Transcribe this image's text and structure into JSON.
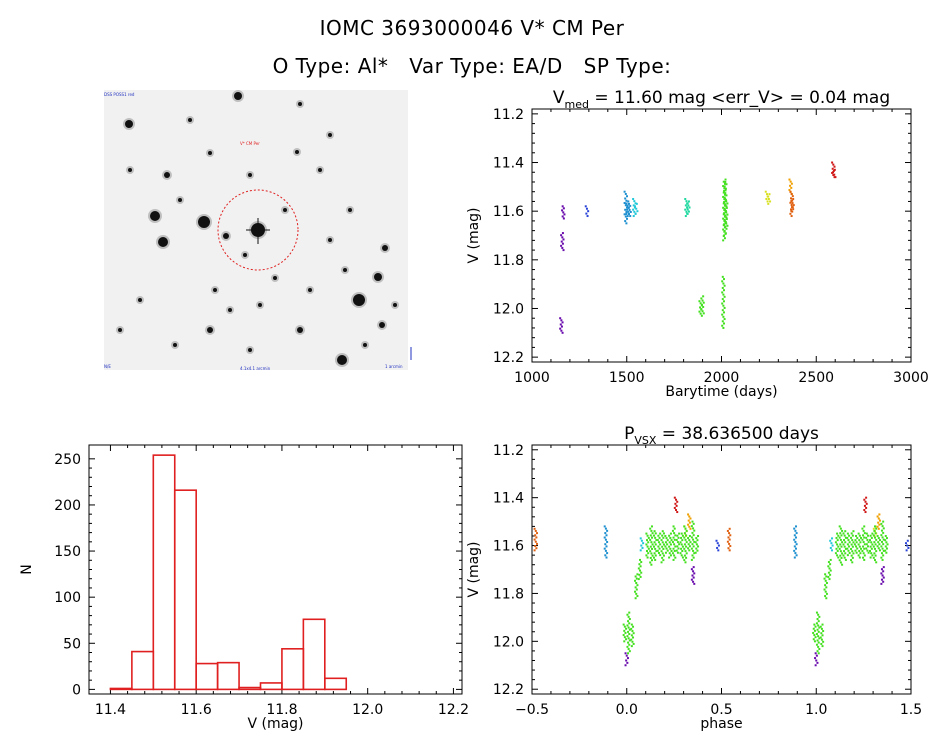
{
  "header": {
    "title": "IOMC 3693000046    V* CM Per",
    "otype": "O Type: Al*",
    "vartype": "Var Type: EA/D",
    "sptype": "SP Type:"
  },
  "finder": {
    "corner_tl": "DSS POSS1 red",
    "label_target": "V* CM Per",
    "corner_bl": "N/E",
    "corner_bc": "4.1x4.1 arcmin",
    "corner_br": "1 arcmin",
    "colors": {
      "ring": "#e02020",
      "scale": "#2030c0"
    }
  },
  "chart_data": [
    {
      "id": "lightcurve",
      "type": "scatter",
      "title_main": "V",
      "title_sub": "med",
      "title_rest": " = 11.60 mag <err_V> = 0.04 mag",
      "xlabel": "Barytime (days)",
      "ylabel": "V (mag)",
      "xlim": [
        1000,
        3000
      ],
      "ylim": [
        12.22,
        11.18
      ],
      "x_ticks": [
        1000,
        1500,
        2000,
        2500,
        3000
      ],
      "x_tick_labels": [
        "1000",
        "1500",
        "2000",
        "2500",
        "3000"
      ],
      "y_ticks": [
        11.2,
        11.4,
        11.6,
        11.8,
        12.0,
        12.2
      ],
      "y_tick_labels": [
        "11.2",
        "11.4",
        "11.6",
        "11.8",
        "12.0",
        "12.2"
      ],
      "groups": [
        {
          "color": "#6a0dad",
          "x": [
            1155,
            1160,
            1165
          ],
          "y": [
            [
              12.04,
              12.1
            ],
            [
              11.69,
              11.76
            ],
            [
              11.58,
              11.63
            ]
          ]
        },
        {
          "color": "#2a44d8",
          "x": [
            1290
          ],
          "y": [
            [
              11.58,
              11.62
            ]
          ]
        },
        {
          "color": "#1e90d0",
          "x": [
            1495,
            1505,
            1515
          ],
          "y": [
            [
              11.52,
              11.65
            ],
            [
              11.56,
              11.62
            ],
            [
              11.57,
              11.62
            ]
          ]
        },
        {
          "color": "#20c8d8",
          "x": [
            1540,
            1550
          ],
          "y": [
            [
              11.55,
              11.62
            ],
            [
              11.57,
              11.61
            ]
          ]
        },
        {
          "color": "#20d8a0",
          "x": [
            1815,
            1825
          ],
          "y": [
            [
              11.55,
              11.62
            ],
            [
              11.56,
              11.61
            ]
          ]
        },
        {
          "color": "#44e020",
          "x": [
            1890,
            1900,
            2010,
            2015,
            2020,
            2025
          ],
          "y": [
            [
              11.97,
              12.03
            ],
            [
              11.95,
              12.02
            ],
            [
              11.87,
              12.08
            ],
            [
              11.47,
              11.72
            ],
            [
              11.48,
              11.7
            ],
            [
              11.55,
              11.66
            ]
          ]
        },
        {
          "color": "#d8e020",
          "x": [
            2240,
            2250
          ],
          "y": [
            [
              11.52,
              11.56
            ],
            [
              11.53,
              11.57
            ]
          ]
        },
        {
          "color": "#f0a000",
          "x": [
            2365
          ],
          "y": [
            [
              11.47,
              11.53
            ]
          ]
        },
        {
          "color": "#e06010",
          "x": [
            2370,
            2375
          ],
          "y": [
            [
              11.52,
              11.62
            ],
            [
              11.55,
              11.6
            ]
          ]
        },
        {
          "color": "#d01818",
          "x": [
            2590,
            2595
          ],
          "y": [
            [
              11.4,
              11.46
            ],
            [
              11.43,
              11.46
            ]
          ]
        }
      ]
    },
    {
      "id": "histogram",
      "type": "bar",
      "xlabel": "V (mag)",
      "ylabel": "N",
      "xlim": [
        11.35,
        12.22
      ],
      "ylim": [
        -5,
        265
      ],
      "bin_edges": [
        11.4,
        11.45,
        11.5,
        11.55,
        11.6,
        11.65,
        11.7,
        11.75,
        11.8,
        11.85,
        11.9,
        11.95,
        12.0,
        12.05,
        12.1
      ],
      "values": [
        1,
        41,
        254,
        216,
        28,
        29,
        2,
        7,
        44,
        76,
        12,
        0,
        0,
        0
      ],
      "bar_color": "#e02020",
      "x_ticks": [
        11.4,
        11.6,
        11.8,
        12.0,
        12.2
      ],
      "x_tick_labels": [
        "11.4",
        "11.6",
        "11.8",
        "12.0",
        "12.2"
      ],
      "y_ticks": [
        0,
        50,
        100,
        150,
        200,
        250
      ],
      "y_tick_labels": [
        "0",
        "50",
        "100",
        "150",
        "200",
        "250"
      ]
    },
    {
      "id": "phased",
      "type": "scatter",
      "title_main": "P",
      "title_sub": "VSX",
      "title_rest": " = 38.636500 days",
      "xlabel": "phase",
      "ylabel": "V (mag)",
      "xlim": [
        -0.5,
        1.5
      ],
      "ylim": [
        12.22,
        11.18
      ],
      "x_ticks": [
        -0.5,
        0.0,
        0.5,
        1.0,
        1.5
      ],
      "x_tick_labels": [
        "−0.5",
        "0.0",
        "0.5",
        "1.0",
        "1.5"
      ],
      "y_ticks": [
        11.2,
        11.4,
        11.6,
        11.8,
        12.0,
        12.2
      ],
      "y_tick_labels": [
        "11.2",
        "11.4",
        "11.6",
        "11.8",
        "12.0",
        "12.2"
      ],
      "groups": [
        {
          "color": "#e06010",
          "x": [
            -0.48,
            0.54
          ],
          "y": [
            [
              11.53,
              11.62
            ],
            [
              11.53,
              11.62
            ]
          ]
        },
        {
          "color": "#1e90d0",
          "x": [
            -0.11,
            0.89
          ],
          "y": [
            [
              11.52,
              11.65
            ],
            [
              11.52,
              11.65
            ]
          ]
        },
        {
          "color": "#20c8d8",
          "x": [
            0.08,
            1.08
          ],
          "y": [
            [
              11.57,
              11.62
            ],
            [
              11.57,
              11.62
            ]
          ]
        },
        {
          "color": "#2a44d8",
          "x": [
            0.48,
            1.48
          ],
          "y": [
            [
              11.58,
              11.62
            ],
            [
              11.58,
              11.62
            ]
          ]
        },
        {
          "color": "#6a0dad",
          "x": [
            0.0,
            0.35,
            1.0,
            1.35
          ],
          "y": [
            [
              12.05,
              12.1
            ],
            [
              11.69,
              11.76
            ],
            [
              12.05,
              12.1
            ],
            [
              11.69,
              11.76
            ]
          ]
        },
        {
          "color": "#d01818",
          "x": [
            0.26,
            1.26
          ],
          "y": [
            [
              11.4,
              11.46
            ],
            [
              11.4,
              11.46
            ]
          ]
        },
        {
          "color": "#f0a000",
          "x": [
            0.33,
            1.33
          ],
          "y": [
            [
              11.47,
              11.53
            ],
            [
              11.47,
              11.53
            ]
          ]
        },
        {
          "color": "#d8e020",
          "x": [
            0.31,
            1.31
          ],
          "y": [
            [
              11.52,
              11.56
            ],
            [
              11.52,
              11.56
            ]
          ]
        },
        {
          "color": "#44e020",
          "x": [
            -0.01,
            0.01,
            0.03,
            0.05,
            0.07,
            0.11,
            0.13,
            0.15,
            0.17,
            0.19,
            0.21,
            0.23,
            0.25,
            0.27,
            0.29,
            0.31,
            0.33,
            0.35,
            0.37,
            0.99,
            1.01,
            1.03,
            1.05,
            1.07,
            1.11,
            1.13,
            1.15,
            1.17,
            1.19,
            1.21,
            1.23,
            1.25,
            1.27,
            1.29,
            1.31,
            1.33,
            1.35,
            1.37
          ],
          "y": [
            [
              11.93,
              12.0
            ],
            [
              11.88,
              12.05
            ],
            [
              11.93,
              12.02
            ],
            [
              11.72,
              11.82
            ],
            [
              11.66,
              11.74
            ],
            [
              11.55,
              11.65
            ],
            [
              11.52,
              11.68
            ],
            [
              11.54,
              11.66
            ],
            [
              11.55,
              11.64
            ],
            [
              11.54,
              11.67
            ],
            [
              11.56,
              11.63
            ],
            [
              11.55,
              11.65
            ],
            [
              11.52,
              11.66
            ],
            [
              11.55,
              11.63
            ],
            [
              11.55,
              11.65
            ],
            [
              11.52,
              11.67
            ],
            [
              11.56,
              11.62
            ],
            [
              11.5,
              11.66
            ],
            [
              11.56,
              11.63
            ],
            [
              11.93,
              12.0
            ],
            [
              11.88,
              12.05
            ],
            [
              11.93,
              12.02
            ],
            [
              11.72,
              11.82
            ],
            [
              11.66,
              11.74
            ],
            [
              11.55,
              11.65
            ],
            [
              11.52,
              11.68
            ],
            [
              11.54,
              11.66
            ],
            [
              11.55,
              11.64
            ],
            [
              11.54,
              11.67
            ],
            [
              11.56,
              11.63
            ],
            [
              11.55,
              11.65
            ],
            [
              11.52,
              11.66
            ],
            [
              11.55,
              11.63
            ],
            [
              11.55,
              11.65
            ],
            [
              11.52,
              11.67
            ],
            [
              11.56,
              11.62
            ],
            [
              11.5,
              11.66
            ],
            [
              11.56,
              11.63
            ]
          ]
        }
      ]
    }
  ]
}
